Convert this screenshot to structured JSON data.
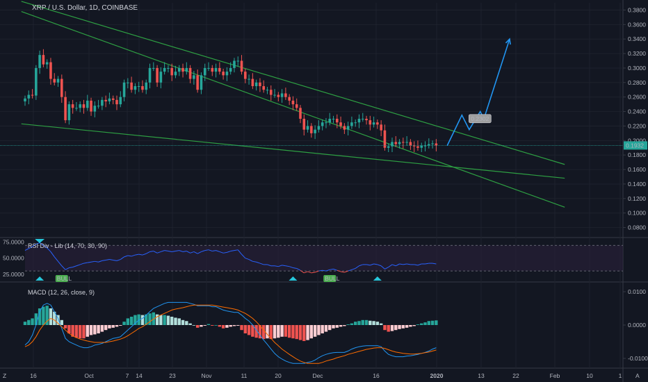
{
  "header": {
    "title": "XRP / U.S. Dollar, 1D, COINBASE"
  },
  "colors": {
    "background": "#131722",
    "up": "#26a69a",
    "down": "#ef5350",
    "trendline": "#2ea043",
    "projection": "#2196f3",
    "price_line": "#26a69a",
    "rsi_line": "#2962ff",
    "macd_line": "#2196f3",
    "signal_line": "#ff6d00"
  },
  "chart_data": [
    {
      "type": "candlestick",
      "name": "main",
      "title": "XRP / U.S. Dollar, 1D, COINBASE",
      "ylim": [
        0.07,
        0.39
      ],
      "y_ticks": [
        "0.3800",
        "0.3600",
        "0.3400",
        "0.3200",
        "0.3000",
        "0.2800",
        "0.2600",
        "0.2400",
        "0.2200",
        "0.2000",
        "0.1800",
        "0.1600",
        "0.1400",
        "0.1200",
        "0.1000",
        "0.0800"
      ],
      "x_ticks": [
        "16",
        "Oct",
        "7",
        "14",
        "23",
        "Nov",
        "11",
        "20",
        "Dec",
        "16",
        "2020",
        "13",
        "22",
        "Feb",
        "10",
        "1"
      ],
      "closes": [
        0.258,
        0.263,
        0.262,
        0.3,
        0.318,
        0.305,
        0.308,
        0.285,
        0.28,
        0.285,
        0.26,
        0.228,
        0.25,
        0.245,
        0.245,
        0.25,
        0.245,
        0.255,
        0.24,
        0.248,
        0.248,
        0.256,
        0.254,
        0.258,
        0.256,
        0.25,
        0.26,
        0.28,
        0.28,
        0.27,
        0.275,
        0.275,
        0.27,
        0.28,
        0.3,
        0.3,
        0.28,
        0.295,
        0.3,
        0.3,
        0.29,
        0.295,
        0.3,
        0.295,
        0.3,
        0.285,
        0.29,
        0.27,
        0.29,
        0.3,
        0.3,
        0.295,
        0.3,
        0.295,
        0.29,
        0.295,
        0.3,
        0.31,
        0.31,
        0.295,
        0.285,
        0.285,
        0.275,
        0.28,
        0.275,
        0.27,
        0.27,
        0.263,
        0.263,
        0.26,
        0.265,
        0.26,
        0.255,
        0.25,
        0.245,
        0.23,
        0.215,
        0.22,
        0.21,
        0.215,
        0.22,
        0.225,
        0.225,
        0.23,
        0.23,
        0.225,
        0.22,
        0.215,
        0.22,
        0.225,
        0.225,
        0.23,
        0.23,
        0.228,
        0.222,
        0.225,
        0.222,
        0.214,
        0.19,
        0.192,
        0.198,
        0.195,
        0.198,
        0.197,
        0.198,
        0.193,
        0.192,
        0.19,
        0.193,
        0.193,
        0.195,
        0.196,
        0.193
      ],
      "last_price": "0.1932",
      "price_label": "0.2302",
      "trendlines": [
        {
          "x1": -1,
          "y1": 0.392,
          "x2": 147,
          "y2": 0.167
        },
        {
          "x1": -1,
          "y1": 0.378,
          "x2": 147,
          "y2": 0.108
        },
        {
          "x1": -1,
          "y1": 0.223,
          "x2": 147,
          "y2": 0.148
        }
      ],
      "projection": [
        [
          115,
          0.193
        ],
        [
          119,
          0.235
        ],
        [
          121,
          0.215
        ],
        [
          124,
          0.24
        ],
        [
          125,
          0.23
        ],
        [
          132,
          0.34
        ]
      ]
    },
    {
      "type": "line",
      "name": "rsi",
      "title": "RSI Div - Lib (14, 70, 30, 90)",
      "ylim": [
        15,
        80
      ],
      "y_ticks": [
        "75.0000",
        "50.0000",
        "25.0000"
      ],
      "bands": [
        70,
        30
      ],
      "values": [
        62,
        65,
        68,
        72,
        74,
        70,
        66,
        60,
        52,
        45,
        38,
        32,
        35,
        36,
        38,
        40,
        42,
        43,
        44,
        45,
        44,
        46,
        47,
        48,
        47,
        46,
        48,
        52,
        54,
        53,
        55,
        56,
        55,
        57,
        60,
        61,
        58,
        60,
        62,
        61,
        60,
        61,
        62,
        60,
        61,
        58,
        60,
        57,
        60,
        62,
        63,
        61,
        62,
        60,
        58,
        59,
        61,
        62,
        63,
        56,
        50,
        48,
        45,
        44,
        42,
        40,
        40,
        38,
        38,
        37,
        39,
        38,
        37,
        35,
        34,
        31,
        27,
        29,
        27,
        28,
        30,
        31,
        30,
        32,
        33,
        31,
        29,
        28,
        30,
        32,
        34,
        38,
        40,
        40,
        39,
        41,
        40,
        38,
        33,
        36,
        40,
        38,
        41,
        40,
        41,
        40,
        40,
        39,
        41,
        41,
        42,
        42,
        41
      ],
      "badges": [
        "BULL",
        "BULL"
      ]
    },
    {
      "type": "histogram+line",
      "name": "macd",
      "title": "MACD (12, 26, close, 9)",
      "ylim": [
        -0.0125,
        0.0125
      ],
      "y_ticks": [
        "0.0100",
        "0.0000",
        "-0.0100"
      ],
      "histogram": [
        0.001,
        0.0015,
        0.002,
        0.0035,
        0.005,
        0.0055,
        0.0058,
        0.005,
        0.004,
        0.003,
        0.0015,
        -0.001,
        -0.0025,
        -0.0035,
        -0.0038,
        -0.004,
        -0.004,
        -0.0035,
        -0.003,
        -0.0028,
        -0.0025,
        -0.002,
        -0.0015,
        -0.001,
        -0.0008,
        -0.0005,
        -0.0002,
        0.001,
        0.002,
        0.0025,
        0.003,
        0.0032,
        0.003,
        0.0032,
        0.0035,
        0.0038,
        0.0032,
        0.003,
        0.003,
        0.0028,
        0.0025,
        0.0022,
        0.002,
        0.0015,
        0.0012,
        0.0005,
        0,
        -0.0008,
        -0.0005,
        -0.0002,
        0.0003,
        -0.0002,
        0,
        -0.0005,
        -0.001,
        -0.0008,
        -0.0005,
        -0.0003,
        -0.0002,
        -0.0015,
        -0.0025,
        -0.003,
        -0.0035,
        -0.0038,
        -0.004,
        -0.0042,
        -0.004,
        -0.0042,
        -0.004,
        -0.0038,
        -0.0035,
        -0.0035,
        -0.0038,
        -0.004,
        -0.0042,
        -0.0045,
        -0.0048,
        -0.0045,
        -0.004,
        -0.0035,
        -0.003,
        -0.0025,
        -0.002,
        -0.0015,
        -0.001,
        -0.0008,
        -0.0005,
        -0.0003,
        0.0002,
        0.0005,
        0.001,
        0.0012,
        0.0015,
        0.0015,
        0.0013,
        0.0012,
        0.001,
        0.0005,
        -0.0015,
        -0.002,
        -0.0018,
        -0.0015,
        -0.0012,
        -0.001,
        -0.0008,
        -0.0005,
        -0.0003,
        0.0002,
        0.0005,
        0.0008,
        0.0012,
        0.0013,
        0.0014
      ],
      "macd": [
        -0.006,
        -0.005,
        -0.003,
        0,
        0.004,
        0.006,
        0.0065,
        0.006,
        0.004,
        0.002,
        -0.001,
        -0.004,
        -0.005,
        -0.0055,
        -0.006,
        -0.0065,
        -0.0068,
        -0.0068,
        -0.0065,
        -0.006,
        -0.0058,
        -0.0055,
        -0.005,
        -0.0045,
        -0.004,
        -0.0038,
        -0.0035,
        -0.0025,
        -0.0015,
        -0.0005,
        0.0005,
        0.0015,
        0.002,
        0.003,
        0.004,
        0.005,
        0.0055,
        0.006,
        0.0065,
        0.0068,
        0.0068,
        0.0068,
        0.0068,
        0.0068,
        0.0068,
        0.0065,
        0.0062,
        0.0058,
        0.0058,
        0.0058,
        0.0058,
        0.0055,
        0.0055,
        0.005,
        0.0045,
        0.0042,
        0.004,
        0.0038,
        0.0038,
        0.003,
        0.002,
        0.0012,
        0,
        -0.0015,
        -0.003,
        -0.0045,
        -0.0058,
        -0.0072,
        -0.0085,
        -0.0095,
        -0.0102,
        -0.0108,
        -0.0112,
        -0.0115,
        -0.0115,
        -0.0115,
        -0.0115,
        -0.0112,
        -0.011,
        -0.0105,
        -0.0098,
        -0.0092,
        -0.0088,
        -0.0085,
        -0.0083,
        -0.0082,
        -0.0082,
        -0.0082,
        -0.0078,
        -0.0072,
        -0.0068,
        -0.0065,
        -0.0063,
        -0.0062,
        -0.0062,
        -0.0062,
        -0.0062,
        -0.0065,
        -0.0078,
        -0.0088,
        -0.0092,
        -0.0095,
        -0.0095,
        -0.0095,
        -0.0093,
        -0.0092,
        -0.009,
        -0.0088,
        -0.0085,
        -0.0082,
        -0.0078,
        -0.0072,
        -0.0068
      ],
      "signal": [
        -0.0065,
        -0.006,
        -0.005,
        -0.0035,
        -0.0015,
        0,
        0.0012,
        0.002,
        0.0015,
        0.0005,
        -0.0005,
        -0.0015,
        -0.0025,
        -0.0032,
        -0.0038,
        -0.0042,
        -0.0045,
        -0.0048,
        -0.005,
        -0.0052,
        -0.0052,
        -0.0052,
        -0.0052,
        -0.005,
        -0.0048,
        -0.0045,
        -0.0042,
        -0.0038,
        -0.0032,
        -0.0025,
        -0.0018,
        -0.001,
        -0.0005,
        0.0002,
        0.001,
        0.0018,
        0.0025,
        0.003,
        0.0035,
        0.004,
        0.0045,
        0.0048,
        0.005,
        0.0052,
        0.0055,
        0.0058,
        0.006,
        0.006,
        0.006,
        0.006,
        0.006,
        0.006,
        0.0058,
        0.0056,
        0.0054,
        0.0052,
        0.005,
        0.0048,
        0.0045,
        0.004,
        0.0035,
        0.0028,
        0.002,
        0.001,
        -0.0002,
        -0.0015,
        -0.0028,
        -0.004,
        -0.0052,
        -0.0062,
        -0.0072,
        -0.008,
        -0.0088,
        -0.0095,
        -0.0102,
        -0.0108,
        -0.0112,
        -0.0115,
        -0.0115,
        -0.0115,
        -0.0115,
        -0.0112,
        -0.0108,
        -0.0105,
        -0.0102,
        -0.0098,
        -0.0095,
        -0.0092,
        -0.0088,
        -0.0085,
        -0.0082,
        -0.0079,
        -0.0076,
        -0.0073,
        -0.0071,
        -0.0069,
        -0.0068,
        -0.0068,
        -0.007,
        -0.0074,
        -0.0078,
        -0.0081,
        -0.0083,
        -0.0085,
        -0.0086,
        -0.0087,
        -0.0087,
        -0.0086,
        -0.0085,
        -0.0083,
        -0.0081,
        -0.0078,
        -0.0075
      ]
    }
  ],
  "footer": {
    "left_tool": "Z",
    "right_tool": "A"
  }
}
